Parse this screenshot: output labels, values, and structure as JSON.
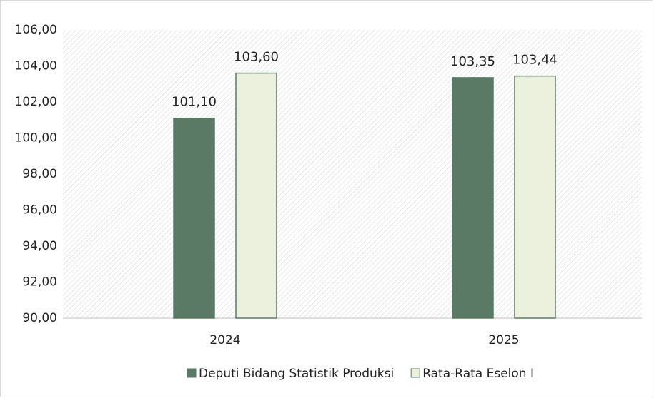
{
  "chart_data": {
    "type": "bar",
    "categories": [
      "2024",
      "2025"
    ],
    "series": [
      {
        "name": "Deputi Bidang Statistik Produksi",
        "color": "#5b7a65",
        "values": [
          101.1,
          103.35
        ],
        "value_labels": [
          "101,10",
          "103,35"
        ]
      },
      {
        "name": "Rata-Rata Eselon I",
        "color": "#ebf1dd",
        "values": [
          103.6,
          103.44
        ],
        "value_labels": [
          "103,60",
          "103,44"
        ]
      }
    ],
    "ylim": [
      90,
      106
    ],
    "yticks": [
      {
        "value": 90,
        "label": "90,00"
      },
      {
        "value": 92,
        "label": "92,00"
      },
      {
        "value": 94,
        "label": "94,00"
      },
      {
        "value": 96,
        "label": "96,00"
      },
      {
        "value": 98,
        "label": "98,00"
      },
      {
        "value": 100,
        "label": "100,00"
      },
      {
        "value": 102,
        "label": "102,00"
      },
      {
        "value": 104,
        "label": "104,00"
      },
      {
        "value": 106,
        "label": "106,00"
      }
    ],
    "legend": "bottom"
  }
}
